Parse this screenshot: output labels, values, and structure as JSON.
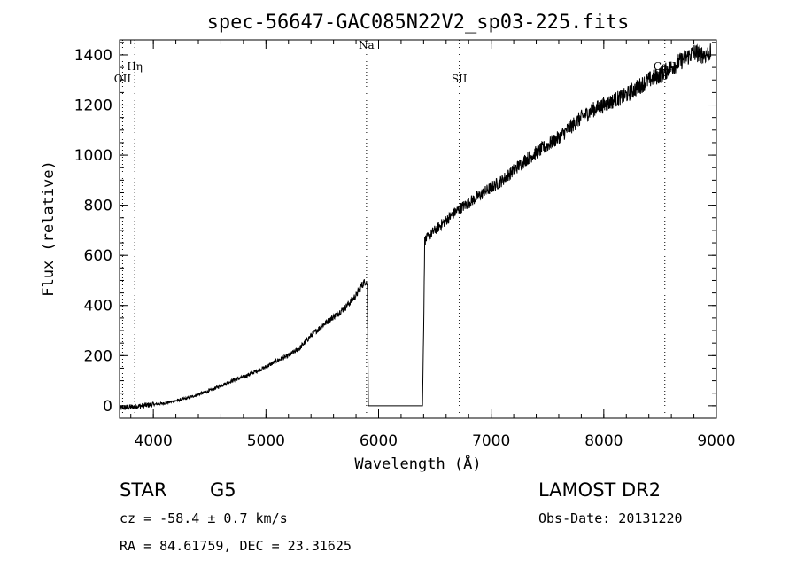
{
  "chart_data": {
    "type": "line",
    "title": "spec-56647-GAC085N22V2_sp03-225.fits",
    "xlabel": "Wavelength (Å)",
    "ylabel": "Flux (relative)",
    "xlim": [
      3700,
      9000
    ],
    "ylim": [
      -50,
      1460
    ],
    "x_ticks": [
      4000,
      5000,
      6000,
      7000,
      8000,
      9000
    ],
    "y_ticks": [
      0,
      200,
      400,
      600,
      800,
      1000,
      1200,
      1400
    ],
    "x_minor_step": 200,
    "y_minor_step": 50,
    "grid": false,
    "series": [
      {
        "x": [
          3700,
          3800,
          3900,
          4000,
          4100,
          4200,
          4300,
          4400,
          4500,
          4600,
          4700,
          4800,
          4900,
          5000,
          5100,
          5200,
          5300,
          5400,
          5500,
          5600,
          5700,
          5800,
          5850,
          5890,
          5900,
          5910,
          6000,
          6100,
          6200,
          6300,
          6390,
          6400,
          6410,
          6500,
          6600,
          6700,
          6800,
          6900,
          7000,
          7100,
          7200,
          7300,
          7400,
          7500,
          7600,
          7700,
          7800,
          7900,
          8000,
          8100,
          8200,
          8300,
          8400,
          8500,
          8600,
          8700,
          8800,
          8900,
          8950
        ],
        "y": [
          -10,
          -5,
          0,
          5,
          10,
          20,
          30,
          45,
          60,
          80,
          100,
          115,
          135,
          155,
          180,
          200,
          230,
          280,
          320,
          355,
          390,
          440,
          480,
          500,
          480,
          0,
          0,
          0,
          0,
          0,
          0,
          300,
          660,
          700,
          740,
          780,
          810,
          840,
          870,
          900,
          940,
          980,
          1010,
          1040,
          1070,
          1110,
          1150,
          1180,
          1200,
          1220,
          1240,
          1270,
          1300,
          1320,
          1350,
          1380,
          1410,
          1400,
          1410
        ]
      }
    ],
    "line_markers": [
      {
        "label": "OII",
        "x": 3727,
        "label_y": 1290
      },
      {
        "label": "Hη",
        "x": 3835,
        "label_y": 1340
      },
      {
        "label": "Na",
        "x": 5893,
        "label_y": 1425
      },
      {
        "label": "SII",
        "x": 6717,
        "label_y": 1290
      },
      {
        "label": "CaII",
        "x": 8542,
        "label_y": 1340
      }
    ]
  },
  "info": {
    "object_class": "STAR",
    "subclass": "G5",
    "survey": "LAMOST DR2",
    "redshift_line": "cz = -58.4 ± 0.7 km/s",
    "obs_date": "Obs-Date: 20131220",
    "coords": "RA =  84.61759, DEC =  23.31625"
  }
}
